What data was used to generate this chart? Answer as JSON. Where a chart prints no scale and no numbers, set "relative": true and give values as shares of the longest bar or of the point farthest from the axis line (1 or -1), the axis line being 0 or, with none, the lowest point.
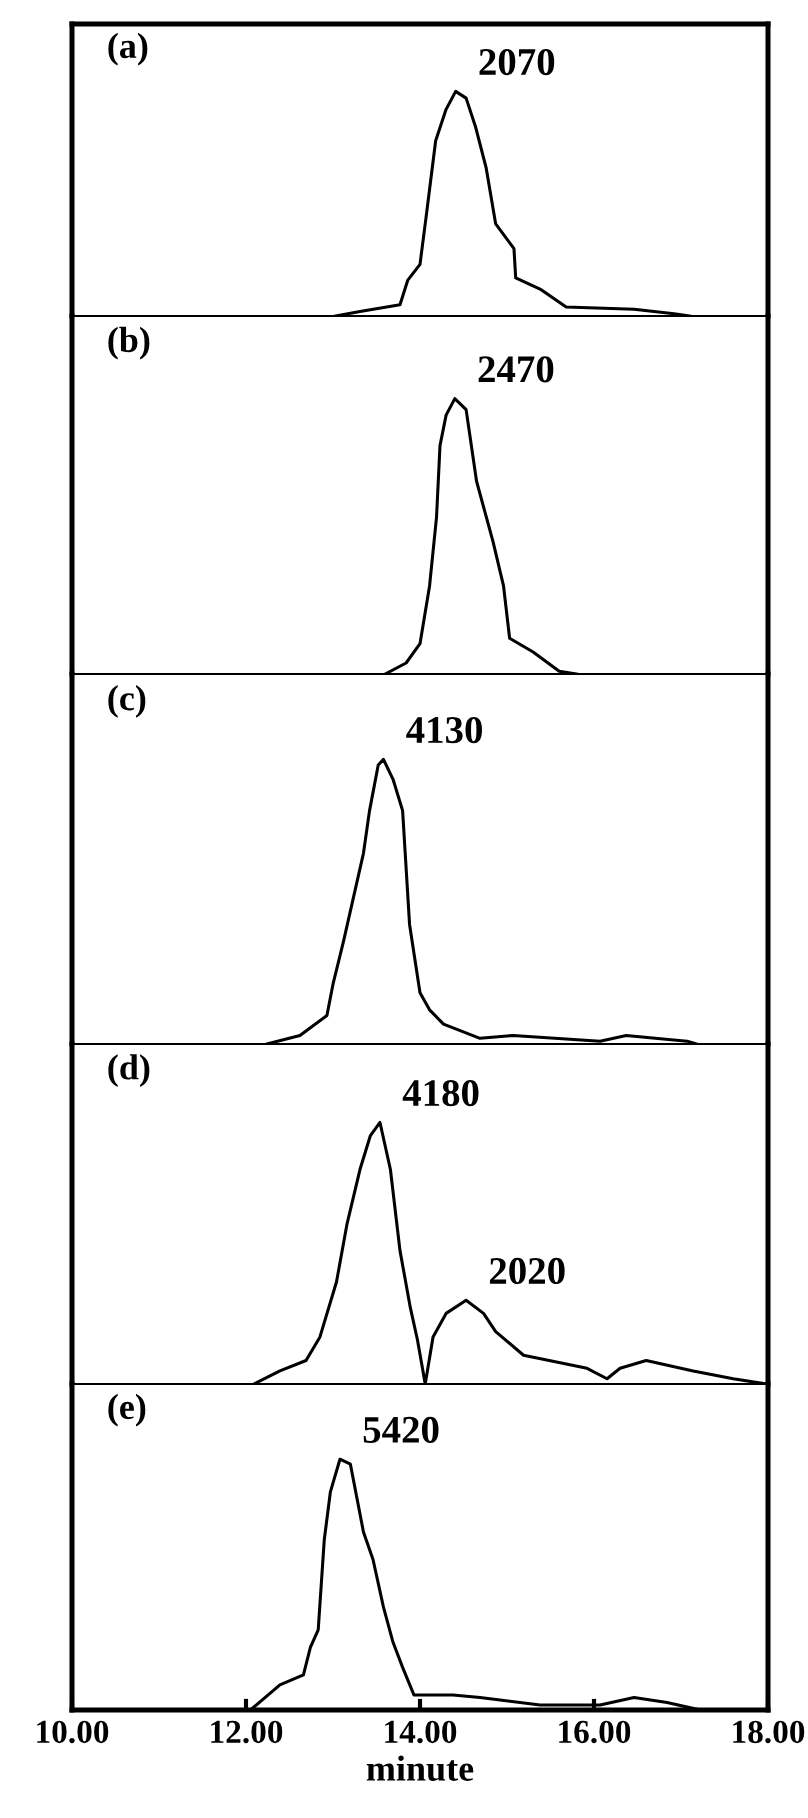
{
  "chart_data": [
    {
      "type": "line",
      "title": "(a)",
      "relative": true,
      "xlim": [
        10,
        18
      ],
      "tick_labels": false,
      "grid": false,
      "legend": false,
      "series": [
        {
          "color": "#000000",
          "x": [
            13.03,
            13.31,
            13.77,
            13.86,
            14.0,
            14.07,
            14.18,
            14.3,
            14.41,
            14.53,
            14.64,
            14.76,
            14.87,
            15.08,
            15.1,
            15.38,
            15.68,
            16.46,
            16.92,
            17.1
          ],
          "values": [
            0,
            0.02,
            0.05,
            0.16,
            0.23,
            0.44,
            0.78,
            0.92,
            1,
            0.97,
            0.84,
            0.66,
            0.41,
            0.3,
            0.17,
            0.12,
            0.04,
            0.03,
            0.01,
            0
          ]
        }
      ],
      "annotations": [
        {
          "text": "2070",
          "x": 14.41,
          "y": 1
        }
      ]
    },
    {
      "type": "line",
      "title": "(b)",
      "relative": true,
      "xlim": [
        10,
        18
      ],
      "tick_labels": false,
      "grid": false,
      "legend": false,
      "series": [
        {
          "color": "#000000",
          "x": [
            13.6,
            13.84,
            14.0,
            14.11,
            14.19,
            14.23,
            14.3,
            14.4,
            14.53,
            14.65,
            14.84,
            14.96,
            15.03,
            15.3,
            15.6,
            15.8
          ],
          "values": [
            0,
            0.04,
            0.11,
            0.32,
            0.57,
            0.83,
            0.94,
            1,
            0.96,
            0.7,
            0.48,
            0.32,
            0.13,
            0.08,
            0.01,
            0
          ]
        }
      ],
      "annotations": [
        {
          "text": "2470",
          "x": 14.4,
          "y": 1
        }
      ]
    },
    {
      "type": "line",
      "title": "(c)",
      "relative": true,
      "xlim": [
        10,
        18
      ],
      "tick_labels": false,
      "grid": false,
      "legend": false,
      "series": [
        {
          "color": "#000000",
          "x": [
            12.24,
            12.62,
            12.93,
            13.0,
            13.12,
            13.35,
            13.42,
            13.52,
            13.58,
            13.69,
            13.8,
            13.88,
            14.0,
            14.11,
            14.27,
            14.69,
            15.07,
            16.07,
            16.37,
            17.07,
            17.18
          ],
          "values": [
            0,
            0.03,
            0.1,
            0.21,
            0.36,
            0.67,
            0.82,
            0.98,
            1,
            0.93,
            0.82,
            0.42,
            0.18,
            0.12,
            0.07,
            0.02,
            0.03,
            0.01,
            0.03,
            0.01,
            0
          ]
        }
      ],
      "annotations": [
        {
          "text": "4130",
          "x": 13.58,
          "y": 1
        }
      ]
    },
    {
      "type": "line",
      "title": "(d)",
      "relative": true,
      "xlim": [
        10,
        18
      ],
      "tick_labels": false,
      "grid": false,
      "legend": false,
      "series": [
        {
          "color": "#000000",
          "x": [
            12.09,
            12.39,
            12.69,
            12.85,
            13.04,
            13.16,
            13.31,
            13.43,
            13.54,
            13.66,
            13.77,
            13.89,
            13.97,
            14.06,
            14.15,
            14.3,
            14.53,
            14.73,
            14.87,
            15.19,
            15.92,
            16.15,
            16.3,
            16.6,
            17.14,
            17.6,
            17.98
          ],
          "values": [
            0,
            0.05,
            0.09,
            0.18,
            0.39,
            0.61,
            0.82,
            0.95,
            1,
            0.82,
            0.51,
            0.29,
            0.17,
            0,
            0.18,
            0.27,
            0.32,
            0.27,
            0.2,
            0.11,
            0.06,
            0.02,
            0.06,
            0.09,
            0.05,
            0.02,
            0
          ]
        }
      ],
      "annotations": [
        {
          "text": "4180",
          "x": 13.54,
          "y": 1
        },
        {
          "text": "2020",
          "x": 14.53,
          "y": 0.32
        }
      ]
    },
    {
      "type": "line",
      "title": "(e)",
      "relative": true,
      "xlim": [
        10,
        18
      ],
      "xticks": [
        {
          "value": 10,
          "label": "10.00"
        },
        {
          "value": 12,
          "label": "12.00"
        },
        {
          "value": 14,
          "label": "14.00"
        },
        {
          "value": 16,
          "label": "16.00"
        },
        {
          "value": 18,
          "label": "18.00"
        }
      ],
      "xlabel": "minute",
      "tick_labels": "x",
      "grid": false,
      "legend": false,
      "series": [
        {
          "color": "#000000",
          "x": [
            12.05,
            12.39,
            12.66,
            12.74,
            12.83,
            12.9,
            12.97,
            13.08,
            13.2,
            13.35,
            13.46,
            13.58,
            13.69,
            13.8,
            13.93,
            14.38,
            14.69,
            15.38,
            16.07,
            16.46,
            16.84,
            17.22
          ],
          "values": [
            0,
            0.1,
            0.14,
            0.25,
            0.32,
            0.68,
            0.87,
            1,
            0.98,
            0.71,
            0.6,
            0.41,
            0.27,
            0.17,
            0.06,
            0.06,
            0.05,
            0.02,
            0.02,
            0.05,
            0.03,
            0
          ]
        }
      ],
      "annotations": [
        {
          "text": "5420",
          "x": 13.08,
          "y": 1
        }
      ]
    }
  ]
}
